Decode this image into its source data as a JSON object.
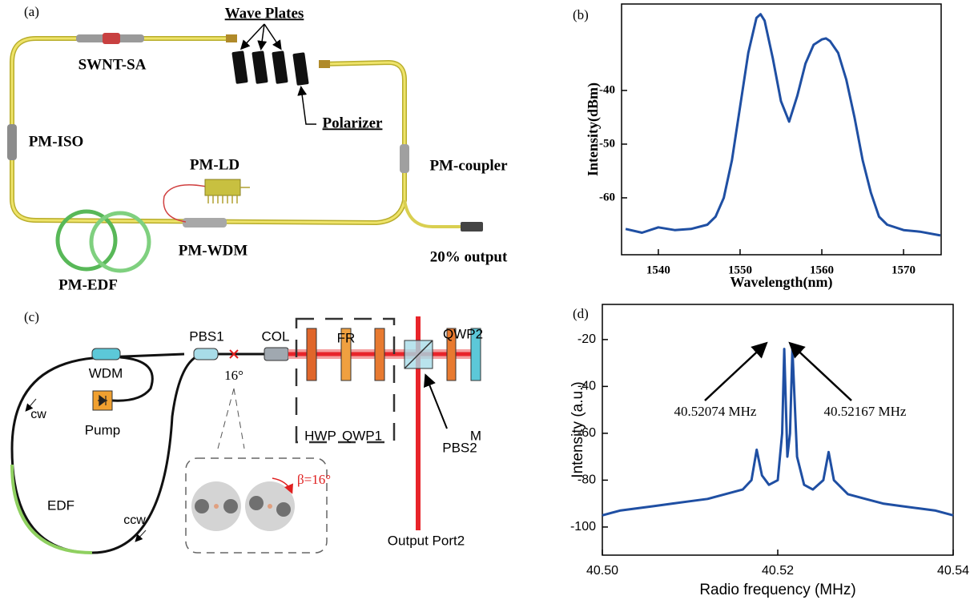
{
  "diagram_a": {
    "label": "(a)",
    "wave_plates": "Wave Plates",
    "swnt_sa": "SWNT-SA",
    "polarizer": "Polarizer",
    "pm_iso": "PM-ISO",
    "pm_ld": "PM-LD",
    "pm_coupler": "PM-coupler",
    "pm_wdm": "PM-WDM",
    "output": "20% output",
    "pm_edf": "PM-EDF"
  },
  "diagram_c": {
    "label": "(c)",
    "pbs1": "PBS1",
    "col": "COL",
    "fr": "FR",
    "qwp2": "QWP2",
    "wdm": "WDM",
    "angle": "16°",
    "cw": "cw",
    "hwp": "HWP",
    "qwp1": "QWP1",
    "mirror": "M",
    "pbs2": "PBS2",
    "pump": "Pump",
    "beta": "β=16°",
    "edf": "EDF",
    "ccw": "ccw",
    "output_port": "Output Port2"
  },
  "chart_data": [
    {
      "type": "line",
      "label": "(b)",
      "xlabel": "Wavelength(nm)",
      "ylabel": "Intensity(dBm)",
      "color": "#1f4fa3",
      "x": [
        1536,
        1538,
        1540,
        1542,
        1544,
        1546,
        1547,
        1548,
        1549,
        1550,
        1551,
        1552,
        1552.5,
        1553,
        1554,
        1555,
        1556,
        1557,
        1558,
        1559,
        1560,
        1560.5,
        1561,
        1562,
        1563,
        1564,
        1565,
        1566,
        1567,
        1568,
        1570,
        1572,
        1574.5
      ],
      "values": [
        -65.8,
        -66.5,
        -65.5,
        -66,
        -65.8,
        -65,
        -63.5,
        -60,
        -53,
        -43,
        -33,
        -26.5,
        -25.8,
        -27,
        -34,
        -42,
        -45.8,
        -41,
        -35,
        -31.5,
        -30.5,
        -30.3,
        -30.8,
        -33,
        -38,
        -45,
        -53,
        -59,
        -63.5,
        -65,
        -66,
        -66.3,
        -67
      ],
      "xlim": [
        1535.5,
        1574.6
      ],
      "ylim": [
        -70.6,
        -23.9
      ],
      "xticks": [
        1540,
        1550,
        1560,
        1570
      ],
      "yticks": [
        -40,
        -50,
        -60
      ]
    },
    {
      "type": "line",
      "label": "(d)",
      "xlabel": "Radio frequency (MHz)",
      "ylabel": "Intensity (a.u.)",
      "color": "#1f4fa3",
      "x": [
        40.5,
        40.502,
        40.504,
        40.506,
        40.508,
        40.51,
        40.512,
        40.514,
        40.516,
        40.517,
        40.5176,
        40.5182,
        40.519,
        40.52,
        40.5205,
        40.52074,
        40.5211,
        40.5214,
        40.52167,
        40.5222,
        40.523,
        40.524,
        40.5252,
        40.5258,
        40.5264,
        40.528,
        40.53,
        40.532,
        40.534,
        40.536,
        40.538,
        40.54
      ],
      "values": [
        -95,
        -93,
        -92,
        -91,
        -90,
        -89,
        -88,
        -86,
        -84,
        -80,
        -67,
        -78,
        -82,
        -80,
        -60,
        -24,
        -70,
        -60,
        -24,
        -70,
        -82,
        -84,
        -80,
        -68,
        -80,
        -86,
        -88,
        -90,
        -91,
        -92,
        -93,
        -95
      ],
      "xlim": [
        40.5,
        40.54
      ],
      "ylim": [
        -112,
        -5
      ],
      "xticks": [
        {
          "value": 40.5,
          "label": "40.50"
        },
        40.52,
        40.54
      ],
      "yticks": [
        -20,
        -40,
        -60,
        -80,
        -100
      ],
      "annotations": [
        "40.52074 MHz",
        "40.52167 MHz"
      ]
    }
  ]
}
